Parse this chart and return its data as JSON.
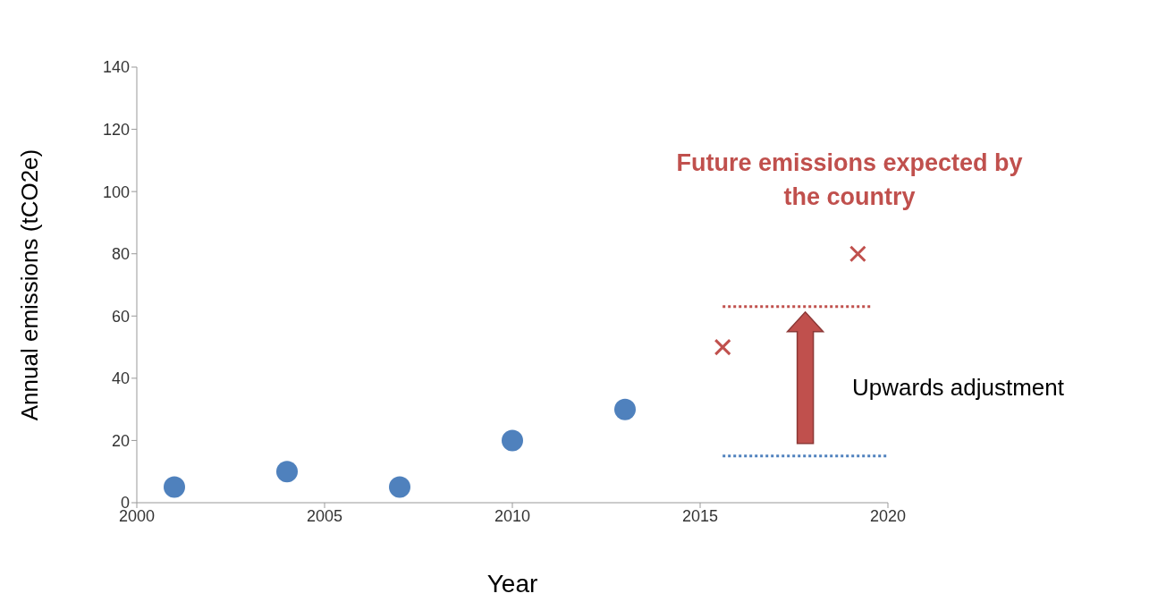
{
  "chart_data": {
    "type": "scatter",
    "xlabel": "Year",
    "ylabel": "Annual emissions (tCO2e)",
    "xlim": [
      2000,
      2020
    ],
    "xticks": [
      2000,
      2005,
      2010,
      2015,
      2020
    ],
    "ylim": [
      0,
      140
    ],
    "yticks": [
      0,
      20,
      40,
      60,
      80,
      100,
      120,
      140
    ],
    "marker": "circle",
    "series": [
      {
        "color": "#4f81bd",
        "x": [
          2001,
          2004,
          2007,
          2010,
          2013
        ],
        "values": [
          5,
          10,
          5,
          20,
          30
        ]
      },
      {
        "color": "#c0504d",
        "marker": "cross",
        "x": [
          2015.6,
          2019.2
        ],
        "values": [
          50,
          80
        ]
      },
      {
        "type": "line",
        "color": "#c0504d",
        "line_style": "dotted",
        "marker": "none",
        "x": [
          2015.6,
          2019.6
        ],
        "values": [
          63,
          63
        ]
      },
      {
        "type": "line",
        "color": "#4f81bd",
        "line_style": "dotted",
        "marker": "none",
        "x": [
          2015.6,
          2020
        ],
        "values": [
          15,
          15
        ]
      }
    ],
    "annotations": [
      "Future emissions  expected by the country",
      "Upwards adjustment"
    ]
  }
}
